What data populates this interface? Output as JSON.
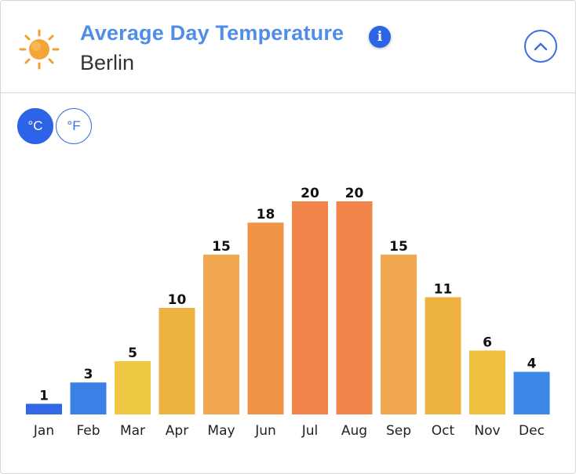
{
  "header": {
    "title": "Average Day Temperature",
    "subtitle": "Berlin",
    "icon": "sun-icon",
    "info_symbol": "i"
  },
  "units": {
    "celsius_label": "°C",
    "fahrenheit_label": "°F",
    "selected": "celsius"
  },
  "chart_data": {
    "type": "bar",
    "categories": [
      "Jan",
      "Feb",
      "Mar",
      "Apr",
      "May",
      "Jun",
      "Jul",
      "Aug",
      "Sep",
      "Oct",
      "Nov",
      "Dec"
    ],
    "values": [
      1,
      3,
      5,
      10,
      15,
      18,
      20,
      20,
      15,
      11,
      6,
      4
    ],
    "colors": [
      "#3068e6",
      "#3c80e6",
      "#efc843",
      "#eeb240",
      "#f2a850",
      "#f09449",
      "#f08449",
      "#f08449",
      "#f2a850",
      "#eeb240",
      "#efc040",
      "#3c88e6"
    ],
    "title": "Average Day Temperature",
    "xlabel": "",
    "ylabel": "",
    "ylim": [
      0,
      20
    ],
    "grid": false,
    "data_labels": true
  }
}
